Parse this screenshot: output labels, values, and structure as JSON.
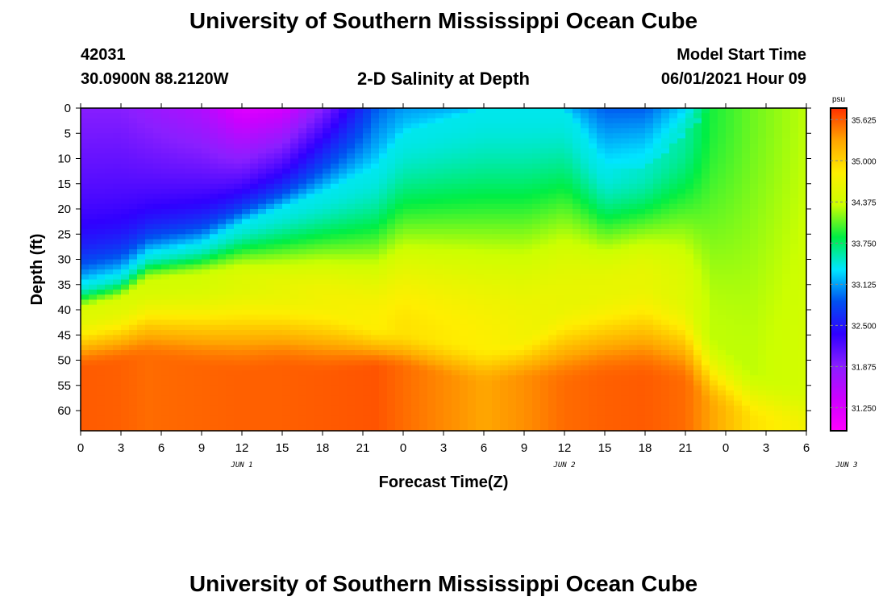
{
  "header": {
    "title_top": "University of Southern Mississippi Ocean Cube",
    "title_bottom": "University of Southern Mississippi Ocean Cube",
    "station_id": "42031",
    "coords": "30.0900N  88.2120W",
    "plot_title": "2-D Salinity at Depth",
    "model_start_label": "Model Start Time",
    "model_start_value": "06/01/2021 Hour 09"
  },
  "chart_data": {
    "type": "heatmap",
    "title": "2-D Salinity at Depth",
    "xlabel": "Forecast Time(Z)",
    "ylabel": "Depth (ft)",
    "x_tick_labels": [
      "0",
      "3",
      "6",
      "9",
      "12",
      "15",
      "18",
      "21",
      "0",
      "3",
      "6",
      "9",
      "12",
      "15",
      "18",
      "21",
      "0",
      "3",
      "6"
    ],
    "date_labels": [
      {
        "text": "JUN 1",
        "hour": 12
      },
      {
        "text": "JUN 2",
        "hour": 36
      },
      {
        "text": "JUN 3",
        "hour": 57
      }
    ],
    "xlim": [
      0,
      54
    ],
    "y_ticks": [
      0,
      5,
      10,
      15,
      20,
      25,
      30,
      35,
      40,
      45,
      50,
      55,
      60
    ],
    "ylim": [
      0,
      64
    ],
    "colorbar": {
      "unit": "psu",
      "min": 30.9,
      "max": 35.8,
      "tick_labels": [
        "35.625",
        "35.000",
        "34.375",
        "33.750",
        "33.125",
        "32.500",
        "31.875",
        "31.250"
      ],
      "colors": [
        "#ff00ff",
        "#cc00ff",
        "#8a1fff",
        "#3000ff",
        "#0050f0",
        "#00e6ff",
        "#00ee44",
        "#ccff00",
        "#ffee00",
        "#ffa500",
        "#ff3000"
      ]
    },
    "layers": [
      {
        "hour": 0,
        "low_top": 31.9,
        "low_bottom": 32.5,
        "h1": 35,
        "h2": 41,
        "h3": 52,
        "mid": 34.5,
        "deep": 35.62
      },
      {
        "hour": 3,
        "low_top": 31.9,
        "low_bottom": 32.5,
        "h1": 33,
        "h2": 39,
        "h3": 51,
        "mid": 34.5,
        "deep": 35.6
      },
      {
        "hour": 5,
        "low_top": 31.8,
        "low_bottom": 32.5,
        "h1": 29,
        "h2": 35,
        "h3": 50,
        "mid": 34.4,
        "deep": 35.55
      },
      {
        "hour": 9,
        "low_top": 31.6,
        "low_bottom": 32.6,
        "h1": 27,
        "h2": 34,
        "h3": 52,
        "mid": 34.4,
        "deep": 35.58
      },
      {
        "hour": 12,
        "low_top": 31.2,
        "low_bottom": 32.7,
        "h1": 23,
        "h2": 34,
        "h3": 53,
        "mid": 34.5,
        "deep": 35.6
      },
      {
        "hour": 15,
        "low_top": 31.3,
        "low_bottom": 32.9,
        "h1": 20,
        "h2": 36,
        "h3": 52,
        "mid": 34.6,
        "deep": 35.6
      },
      {
        "hour": 18,
        "low_top": 31.9,
        "low_bottom": 33.2,
        "h1": 17,
        "h2": 38,
        "h3": 53,
        "mid": 34.7,
        "deep": 35.62
      },
      {
        "hour": 22,
        "low_top": 32.9,
        "low_bottom": 33.3,
        "h1": 12,
        "h2": 43,
        "h3": 52,
        "mid": 34.8,
        "deep": 35.65
      },
      {
        "hour": 24,
        "low_top": 33.1,
        "low_bottom": 33.3,
        "h1": 5,
        "h2": 44,
        "h3": 52,
        "mid": 34.9,
        "deep": 35.55
      },
      {
        "hour": 30,
        "low_top": 33.2,
        "low_bottom": 33.4,
        "h1": 0,
        "h2": 47,
        "h3": 55,
        "mid": 34.8,
        "deep": 35.3
      },
      {
        "hour": 33,
        "low_top": 33.3,
        "low_bottom": 33.4,
        "h1": 0,
        "h2": 45,
        "h3": 54,
        "mid": 34.7,
        "deep": 35.4
      },
      {
        "hour": 36,
        "low_top": 33.2,
        "low_bottom": 33.4,
        "h1": 0,
        "h2": 38,
        "h3": 55,
        "mid": 34.6,
        "deep": 35.55
      },
      {
        "hour": 39,
        "low_top": 32.9,
        "low_bottom": 33.4,
        "h1": 12,
        "h2": 36,
        "h3": 54,
        "mid": 34.6,
        "deep": 35.6
      },
      {
        "hour": 42,
        "low_top": 32.9,
        "low_bottom": 33.5,
        "h1": 12,
        "h2": 34,
        "h3": 54,
        "mid": 34.6,
        "deep": 35.62
      },
      {
        "hour": 45,
        "low_top": 33.3,
        "low_bottom": 33.6,
        "h1": 5,
        "h2": 37,
        "h3": 55,
        "mid": 34.5,
        "deep": 35.55
      },
      {
        "hour": 47,
        "low_top": 33.9,
        "low_bottom": 33.9,
        "h1": 0,
        "h2": 45,
        "h3": 60,
        "mid": 34.3,
        "deep": 35.3
      },
      {
        "hour": 50,
        "low_top": 34.0,
        "low_bottom": 34.1,
        "h1": 0,
        "h2": 52,
        "h3": 62,
        "mid": 34.3,
        "deep": 34.9
      },
      {
        "hour": 54,
        "low_top": 34.1,
        "low_bottom": 34.3,
        "h1": 0,
        "h2": 55,
        "h3": 64,
        "mid": 34.4,
        "deep": 34.7
      }
    ]
  }
}
